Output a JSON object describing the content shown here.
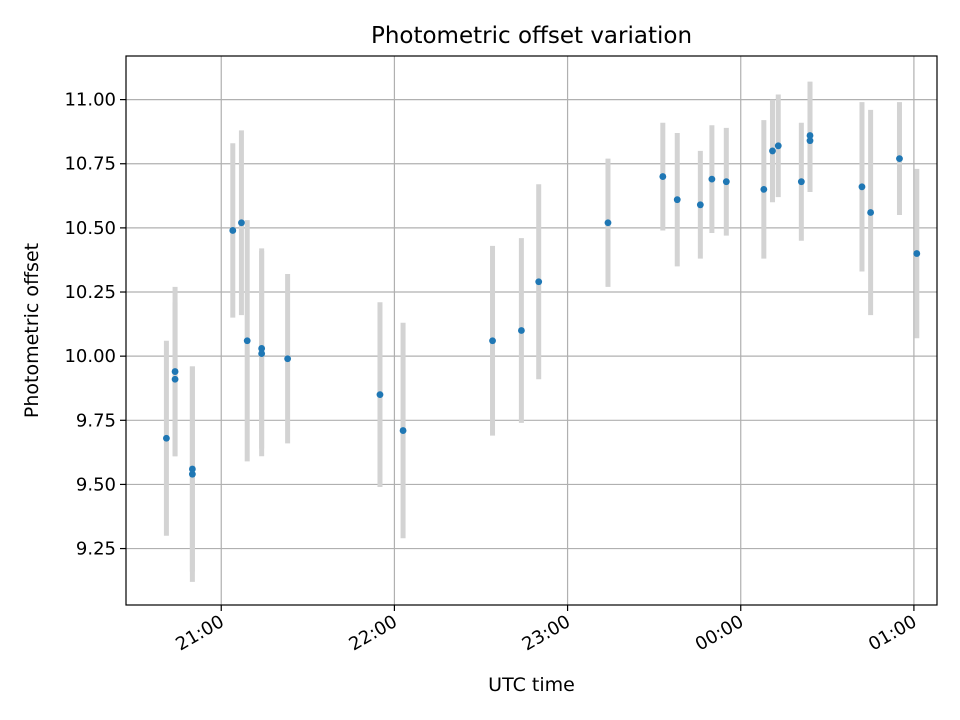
{
  "chart_data": {
    "type": "scatter",
    "title": "Photometric offset variation",
    "xlabel": "UTC time",
    "ylabel": "Photometric offset",
    "x_unit": "UTC time (HH:MM, spanning midnight)",
    "xlim": [
      "20:27",
      "01:08"
    ],
    "ylim": [
      9.03,
      11.17
    ],
    "grid": true,
    "x_ticks": [
      {
        "value": "21:00",
        "label": "21:00"
      },
      {
        "value": "22:00",
        "label": "22:00"
      },
      {
        "value": "23:00",
        "label": "23:00"
      },
      {
        "value": "00:00",
        "label": "00:00"
      },
      {
        "value": "01:00",
        "label": "01:00"
      }
    ],
    "y_ticks": [
      {
        "value": 9.25,
        "label": "9.25"
      },
      {
        "value": 9.5,
        "label": "9.50"
      },
      {
        "value": 9.75,
        "label": "9.75"
      },
      {
        "value": 10.0,
        "label": "10.00"
      },
      {
        "value": 10.25,
        "label": "10.25"
      },
      {
        "value": 10.5,
        "label": "10.50"
      },
      {
        "value": 10.75,
        "label": "10.75"
      },
      {
        "value": 11.0,
        "label": "11.00"
      }
    ],
    "colors": {
      "points": "#1f77b4",
      "errorbars": "#d3d3d3",
      "grid": "#b0b0b0",
      "axes": "#000000"
    },
    "points": [
      {
        "x": "20:41",
        "y": 9.68,
        "err": 0.38
      },
      {
        "x": "20:44",
        "y": 9.91,
        "err": 0.3
      },
      {
        "x": "20:44",
        "y": 9.94,
        "err": 0.33
      },
      {
        "x": "20:50",
        "y": 9.56,
        "err": 0.4
      },
      {
        "x": "20:50",
        "y": 9.54,
        "err": 0.42
      },
      {
        "x": "21:04",
        "y": 10.49,
        "err": 0.34
      },
      {
        "x": "21:07",
        "y": 10.52,
        "err": 0.36
      },
      {
        "x": "21:09",
        "y": 10.06,
        "err": 0.47
      },
      {
        "x": "21:14",
        "y": 10.03,
        "err": 0.39
      },
      {
        "x": "21:14",
        "y": 10.01,
        "err": 0.4
      },
      {
        "x": "21:23",
        "y": 9.99,
        "err": 0.33
      },
      {
        "x": "21:55",
        "y": 9.85,
        "err": 0.36
      },
      {
        "x": "22:03",
        "y": 9.71,
        "err": 0.42
      },
      {
        "x": "22:34",
        "y": 10.06,
        "err": 0.37
      },
      {
        "x": "22:44",
        "y": 10.1,
        "err": 0.36
      },
      {
        "x": "22:50",
        "y": 10.29,
        "err": 0.38
      },
      {
        "x": "23:14",
        "y": 10.52,
        "err": 0.25
      },
      {
        "x": "23:33",
        "y": 10.7,
        "err": 0.21
      },
      {
        "x": "23:38",
        "y": 10.61,
        "err": 0.26
      },
      {
        "x": "23:46",
        "y": 10.59,
        "err": 0.21
      },
      {
        "x": "23:50",
        "y": 10.69,
        "err": 0.21
      },
      {
        "x": "23:55",
        "y": 10.68,
        "err": 0.21
      },
      {
        "x": "00:08",
        "y": 10.65,
        "err": 0.27
      },
      {
        "x": "00:11",
        "y": 10.8,
        "err": 0.2
      },
      {
        "x": "00:13",
        "y": 10.82,
        "err": 0.2
      },
      {
        "x": "00:21",
        "y": 10.68,
        "err": 0.23
      },
      {
        "x": "00:24",
        "y": 10.84,
        "err": 0.2
      },
      {
        "x": "00:24",
        "y": 10.86,
        "err": 0.21
      },
      {
        "x": "00:42",
        "y": 10.66,
        "err": 0.33
      },
      {
        "x": "00:45",
        "y": 10.56,
        "err": 0.4
      },
      {
        "x": "00:55",
        "y": 10.77,
        "err": 0.22
      },
      {
        "x": "01:01",
        "y": 10.4,
        "err": 0.33
      }
    ]
  }
}
